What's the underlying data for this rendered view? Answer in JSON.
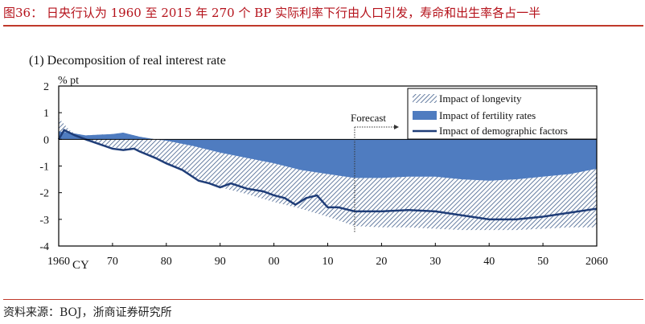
{
  "figure_title": "图36： 日央行认为 1960 至 2015 年 270 个 BP 实际利率下行由人口引发，寿命和出生率各占一半",
  "source": "资料来源：BOJ，浙商证券研究所",
  "colors": {
    "title": "#b5121b",
    "fertility": "#4f7cc0",
    "longevity_hatch": "#3f5d8a",
    "demographic_line": "#1f3d78"
  },
  "chart_data": {
    "type": "area",
    "title": "(1)  Decomposition of real interest rate",
    "ylabel": "% pt",
    "xlabel": "CY",
    "ylim": [
      -4,
      2
    ],
    "xlim": [
      1960,
      2060
    ],
    "yticks": [
      "2",
      "1",
      "0",
      "-1",
      "-2",
      "-3",
      "-4"
    ],
    "xticks": [
      "1960",
      "70",
      "80",
      "90",
      "00",
      "10",
      "20",
      "30",
      "40",
      "50",
      "2060"
    ],
    "grid": false,
    "legend_position": "top-right",
    "annotation": "Forecast",
    "forecast_start": 2015,
    "x": [
      1960,
      1962,
      1965,
      1970,
      1972,
      1975,
      1978,
      1980,
      1985,
      1990,
      1995,
      2000,
      2005,
      2010,
      2015,
      2020,
      2025,
      2030,
      2035,
      2040,
      2045,
      2050,
      2055,
      2060
    ],
    "series": [
      {
        "name": "Impact of fertility rates",
        "style": "filled",
        "values": [
          0.3,
          0.25,
          0.15,
          0.2,
          0.25,
          0.1,
          0,
          -0.05,
          -0.25,
          -0.5,
          -0.7,
          -0.9,
          -1.15,
          -1.3,
          -1.45,
          -1.45,
          -1.4,
          -1.4,
          -1.5,
          -1.55,
          -1.5,
          -1.4,
          -1.3,
          -1.1
        ]
      },
      {
        "name": "Impact of longevity",
        "style": "hatched",
        "values": [
          0.5,
          0.1,
          -0.2,
          -0.5,
          -0.6,
          -0.5,
          -0.7,
          -0.85,
          -1.15,
          -1.3,
          -1.35,
          -1.45,
          -1.45,
          -1.6,
          -1.8,
          -1.85,
          -1.9,
          -1.95,
          -1.9,
          -1.85,
          -1.9,
          -1.95,
          -2.0,
          -2.2
        ]
      },
      {
        "name": "Impact of demographic factors",
        "style": "line",
        "x": [
          1960,
          1961,
          1963,
          1965,
          1970,
          1972,
          1974,
          1975,
          1978,
          1980,
          1983,
          1986,
          1988,
          1990,
          1992,
          1995,
          1998,
          2000,
          2002,
          2004,
          2006,
          2008,
          2010,
          2012,
          2015,
          2020,
          2025,
          2030,
          2035,
          2040,
          2045,
          2050,
          2055,
          2060
        ],
        "values": [
          0,
          0.35,
          0.15,
          0,
          -0.35,
          -0.4,
          -0.35,
          -0.45,
          -0.7,
          -0.9,
          -1.15,
          -1.55,
          -1.65,
          -1.8,
          -1.65,
          -1.85,
          -1.95,
          -2.1,
          -2.2,
          -2.45,
          -2.2,
          -2.1,
          -2.55,
          -2.55,
          -2.7,
          -2.7,
          -2.65,
          -2.7,
          -2.85,
          -3.0,
          -3.0,
          -2.9,
          -2.75,
          -2.6
        ]
      }
    ]
  }
}
